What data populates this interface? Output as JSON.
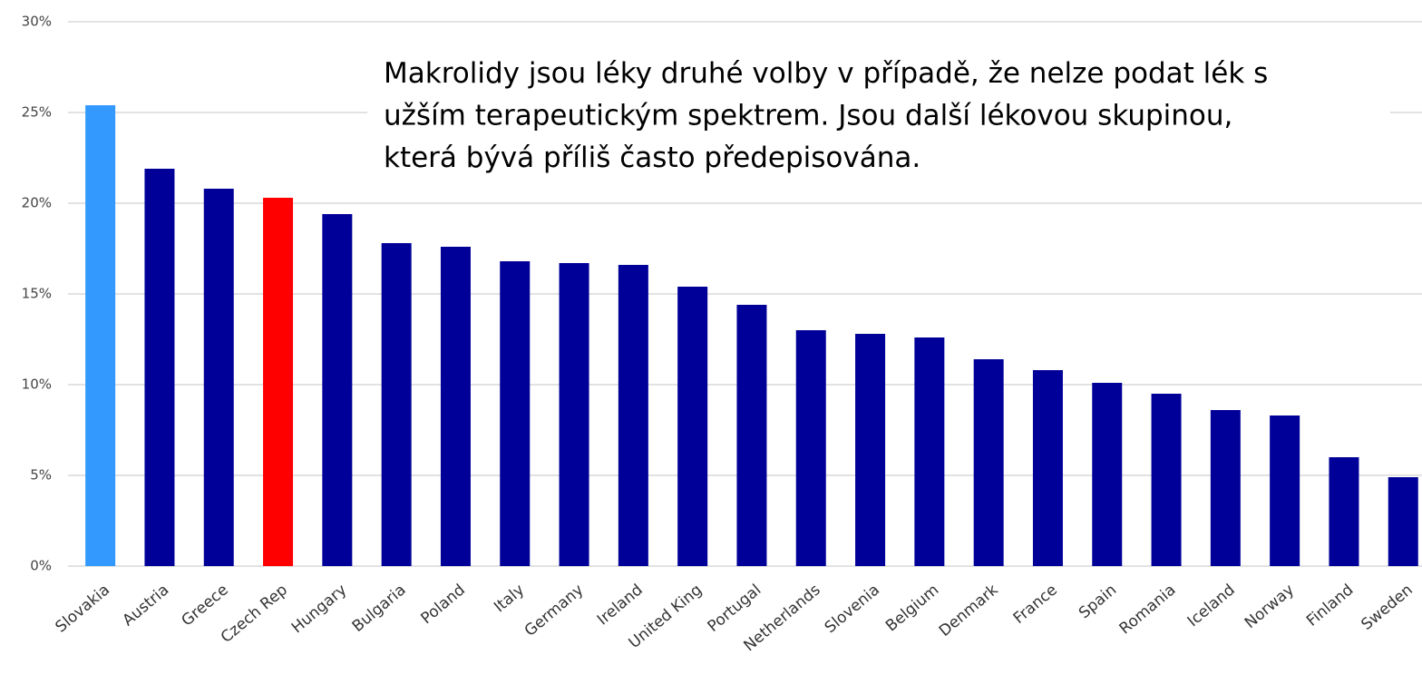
{
  "chart_data": {
    "type": "bar",
    "annotation": [
      "Makrolidy jsou léky druhé volby v případě, že nelze podat lék s",
      "užším terapeutickým spektrem. Jsou další lékovou skupinou,",
      "která bývá příliš často předepisována."
    ],
    "categories": [
      "Slovakia",
      "Austria",
      "Greece",
      "Czech Rep",
      "Hungary",
      "Bulgaria",
      "Poland",
      "Italy",
      "Germany",
      "Ireland",
      "United King",
      "Portugal",
      "Netherlands",
      "Slovenia",
      "Belgium",
      "Denmark",
      "France",
      "Spain",
      "Romania",
      "Iceland",
      "Norway",
      "Finland",
      "Sweden"
    ],
    "values": [
      25.4,
      21.9,
      20.8,
      20.3,
      19.4,
      17.8,
      17.6,
      16.8,
      16.7,
      16.6,
      15.4,
      14.4,
      13.0,
      12.8,
      12.6,
      11.4,
      10.8,
      10.1,
      9.5,
      8.6,
      8.3,
      6.0,
      4.9
    ],
    "colors": [
      "#3399ff",
      "#000099",
      "#000099",
      "#ff0000",
      "#000099",
      "#000099",
      "#000099",
      "#000099",
      "#000099",
      "#000099",
      "#000099",
      "#000099",
      "#000099",
      "#000099",
      "#000099",
      "#000099",
      "#000099",
      "#000099",
      "#000099",
      "#000099",
      "#000099",
      "#000099",
      "#000099"
    ],
    "ylim": [
      0,
      30
    ],
    "yticks": [
      {
        "value": 0,
        "label": "0%"
      },
      {
        "value": 5,
        "label": "5%"
      },
      {
        "value": 10,
        "label": "10%"
      },
      {
        "value": 15,
        "label": "15%"
      },
      {
        "value": 20,
        "label": "20%"
      },
      {
        "value": 25,
        "label": "25%"
      },
      {
        "value": 30,
        "label": "30%"
      }
    ],
    "grid": true
  }
}
